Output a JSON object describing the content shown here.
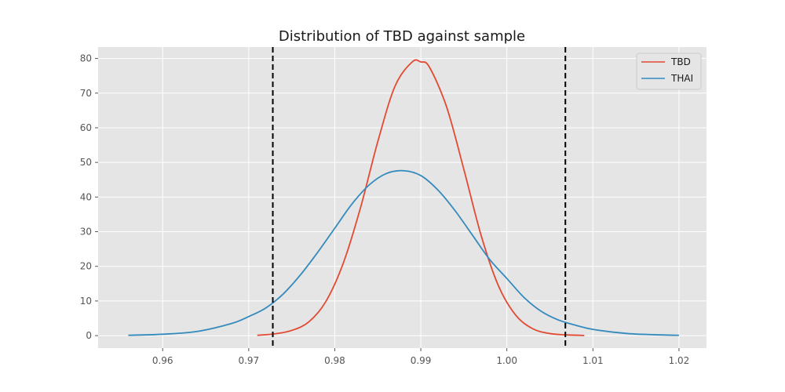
{
  "chart_data": {
    "type": "line",
    "title": "Distribution of TBD against sample",
    "xlabel": "",
    "ylabel": "",
    "xlim": [
      0.9525,
      1.0232
    ],
    "ylim": [
      -3.6,
      83.3
    ],
    "grid": true,
    "legend_position": "top-right",
    "x_ticks": [
      0.96,
      0.97,
      0.98,
      0.99,
      1.0,
      1.01,
      1.02
    ],
    "x_tick_labels": [
      "0.96",
      "0.97",
      "0.98",
      "0.99",
      "1.00",
      "1.01",
      "1.02"
    ],
    "y_ticks": [
      0,
      10,
      20,
      30,
      40,
      50,
      60,
      70,
      80
    ],
    "y_tick_labels": [
      "0",
      "10",
      "20",
      "30",
      "40",
      "50",
      "60",
      "70",
      "80"
    ],
    "series": [
      {
        "name": "TBD",
        "color": "#e24a33",
        "x": [
          0.971,
          0.973,
          0.975,
          0.977,
          0.979,
          0.981,
          0.983,
          0.985,
          0.987,
          0.989,
          0.99,
          0.991,
          0.993,
          0.995,
          0.997,
          0.999,
          1.001,
          1.003,
          1.005,
          1.007,
          1.009
        ],
        "y": [
          0.1,
          0.5,
          1.5,
          4.0,
          10.0,
          21.0,
          37.0,
          56.0,
          72.0,
          79.0,
          79.0,
          77.5,
          66.0,
          48.0,
          29.0,
          14.5,
          6.0,
          2.0,
          0.6,
          0.2,
          0.05
        ]
      },
      {
        "name": "THAI",
        "color": "#348abd",
        "x": [
          0.956,
          0.96,
          0.964,
          0.968,
          0.97,
          0.972,
          0.974,
          0.976,
          0.978,
          0.98,
          0.982,
          0.984,
          0.986,
          0.988,
          0.99,
          0.992,
          0.994,
          0.996,
          0.998,
          1.0,
          1.002,
          1.004,
          1.006,
          1.008,
          1.01,
          1.014,
          1.018,
          1.02
        ],
        "y": [
          0.1,
          0.4,
          1.2,
          3.5,
          5.5,
          8.0,
          12.0,
          17.5,
          24.0,
          31.0,
          38.0,
          43.5,
          46.8,
          47.6,
          46.2,
          42.0,
          36.0,
          29.0,
          22.0,
          16.5,
          11.0,
          7.0,
          4.5,
          3.0,
          1.8,
          0.6,
          0.2,
          0.1
        ]
      }
    ],
    "vlines": [
      {
        "x": 0.9728,
        "color": "#000000",
        "style": "dashed"
      },
      {
        "x": 1.0068,
        "color": "#000000",
        "style": "dashed"
      }
    ]
  }
}
